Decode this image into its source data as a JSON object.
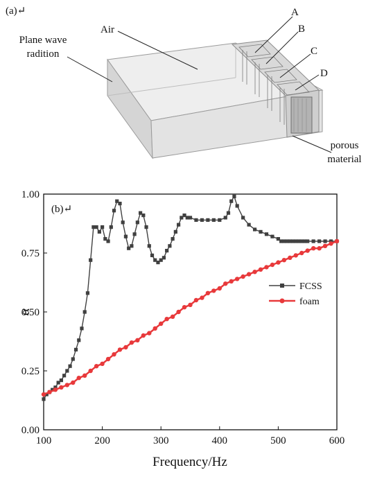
{
  "panel_a": {
    "label": "(a)↵",
    "labels": {
      "plane_wave": "Plane wave",
      "radiation": "radition",
      "air": "Air",
      "A": "A",
      "B": "B",
      "C": "C",
      "D": "D",
      "porous": "porous",
      "material": "material"
    }
  },
  "chart_data": {
    "type": "line",
    "panel_label": "(b)↵",
    "xlabel": "Frequency/Hz",
    "ylabel": "α",
    "xlim": [
      100,
      600
    ],
    "ylim": [
      0,
      1
    ],
    "xticks": [
      "100",
      "200",
      "300",
      "400",
      "500",
      "600"
    ],
    "yticks": [
      "0.00",
      "0.25",
      "0.50",
      "0.75",
      "1.00"
    ],
    "legend_position": "center-right",
    "series": [
      {
        "name": "FCSS",
        "color": "#404040",
        "marker": "square",
        "x": [
          100,
          105,
          110,
          115,
          120,
          125,
          130,
          135,
          140,
          145,
          150,
          155,
          160,
          165,
          170,
          175,
          180,
          185,
          190,
          195,
          200,
          205,
          210,
          215,
          220,
          225,
          230,
          235,
          240,
          245,
          250,
          255,
          260,
          265,
          270,
          275,
          280,
          285,
          290,
          295,
          300,
          305,
          310,
          315,
          320,
          325,
          330,
          335,
          340,
          345,
          350,
          360,
          370,
          380,
          390,
          400,
          410,
          415,
          420,
          425,
          430,
          440,
          450,
          460,
          470,
          480,
          490,
          500,
          505,
          510,
          515,
          520,
          525,
          530,
          535,
          540,
          545,
          550,
          560,
          570,
          580,
          590,
          600
        ],
        "y": [
          0.13,
          0.15,
          0.16,
          0.17,
          0.18,
          0.2,
          0.21,
          0.23,
          0.25,
          0.27,
          0.3,
          0.34,
          0.38,
          0.43,
          0.5,
          0.58,
          0.72,
          0.86,
          0.86,
          0.84,
          0.86,
          0.81,
          0.8,
          0.86,
          0.93,
          0.97,
          0.96,
          0.88,
          0.82,
          0.77,
          0.78,
          0.83,
          0.88,
          0.92,
          0.91,
          0.86,
          0.78,
          0.74,
          0.72,
          0.71,
          0.72,
          0.73,
          0.76,
          0.78,
          0.81,
          0.84,
          0.87,
          0.9,
          0.91,
          0.9,
          0.9,
          0.89,
          0.89,
          0.89,
          0.89,
          0.89,
          0.9,
          0.92,
          0.97,
          0.99,
          0.95,
          0.9,
          0.87,
          0.85,
          0.84,
          0.83,
          0.82,
          0.81,
          0.8,
          0.8,
          0.8,
          0.8,
          0.8,
          0.8,
          0.8,
          0.8,
          0.8,
          0.8,
          0.8,
          0.8,
          0.8,
          0.8,
          0.8
        ]
      },
      {
        "name": "foam",
        "color": "#e8393b",
        "marker": "circle",
        "x": [
          100,
          110,
          120,
          130,
          140,
          150,
          160,
          170,
          180,
          190,
          200,
          210,
          220,
          230,
          240,
          250,
          260,
          270,
          280,
          290,
          300,
          310,
          320,
          330,
          340,
          350,
          360,
          370,
          380,
          390,
          400,
          410,
          420,
          430,
          440,
          450,
          460,
          470,
          480,
          490,
          500,
          510,
          520,
          530,
          540,
          550,
          560,
          570,
          580,
          590,
          600
        ],
        "y": [
          0.15,
          0.16,
          0.17,
          0.18,
          0.19,
          0.2,
          0.22,
          0.23,
          0.25,
          0.27,
          0.28,
          0.3,
          0.32,
          0.34,
          0.35,
          0.37,
          0.38,
          0.4,
          0.41,
          0.43,
          0.45,
          0.47,
          0.48,
          0.5,
          0.52,
          0.53,
          0.55,
          0.56,
          0.58,
          0.59,
          0.6,
          0.62,
          0.63,
          0.64,
          0.65,
          0.66,
          0.67,
          0.68,
          0.69,
          0.7,
          0.71,
          0.72,
          0.73,
          0.74,
          0.75,
          0.76,
          0.77,
          0.77,
          0.78,
          0.79,
          0.8
        ]
      }
    ]
  }
}
